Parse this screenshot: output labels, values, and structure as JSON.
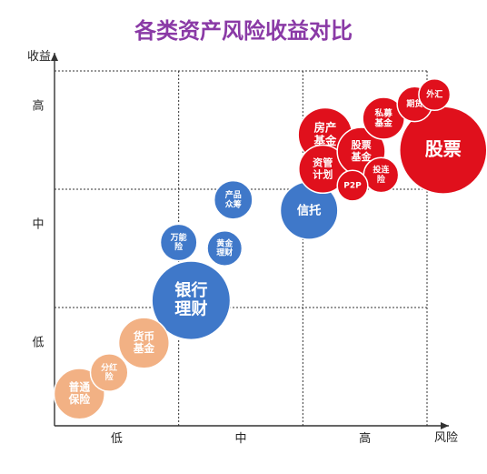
{
  "chart_data": {
    "type": "scatter",
    "title": "各类资产风险收益对比",
    "xlabel": "风险",
    "ylabel": "收益",
    "x_ticks": [
      "低",
      "中",
      "高"
    ],
    "y_ticks": [
      "低",
      "中",
      "高"
    ],
    "xlim": [
      0,
      3
    ],
    "ylim": [
      0,
      3
    ],
    "grid": true,
    "colors": {
      "red": "#e0101c",
      "blue": "#3f78c9",
      "orange": "#f2b184",
      "title": "#8a3aa6"
    },
    "points": [
      {
        "label": "普通\n保险",
        "x": 0.2,
        "y": 0.27,
        "size": 0.58,
        "color": "orange"
      },
      {
        "label": "分红\n险",
        "x": 0.44,
        "y": 0.45,
        "size": 0.43,
        "color": "orange"
      },
      {
        "label": "货币\n基金",
        "x": 0.72,
        "y": 0.7,
        "size": 0.58,
        "color": "orange"
      },
      {
        "label": "银行\n理财",
        "x": 1.1,
        "y": 1.06,
        "size": 0.9,
        "color": "blue"
      },
      {
        "label": "万能\n险",
        "x": 1.0,
        "y": 1.55,
        "size": 0.42,
        "color": "blue"
      },
      {
        "label": "黄金\n理财",
        "x": 1.37,
        "y": 1.5,
        "size": 0.4,
        "color": "blue"
      },
      {
        "label": "产品\n众筹",
        "x": 1.44,
        "y": 1.91,
        "size": 0.44,
        "color": "blue"
      },
      {
        "label": "信托",
        "x": 2.05,
        "y": 1.82,
        "size": 0.66,
        "color": "blue"
      },
      {
        "label": "房产\n基金",
        "x": 2.18,
        "y": 2.46,
        "size": 0.62,
        "color": "red"
      },
      {
        "label": "资管\n计划",
        "x": 2.16,
        "y": 2.17,
        "size": 0.55,
        "color": "red"
      },
      {
        "label": "P2P",
        "x": 2.4,
        "y": 2.03,
        "size": 0.35,
        "color": "red"
      },
      {
        "label": "股票\n基金",
        "x": 2.47,
        "y": 2.32,
        "size": 0.55,
        "color": "red"
      },
      {
        "label": "投连\n险",
        "x": 2.63,
        "y": 2.12,
        "size": 0.4,
        "color": "red"
      },
      {
        "label": "私募\n基金",
        "x": 2.65,
        "y": 2.6,
        "size": 0.48,
        "color": "red"
      },
      {
        "label": "期货",
        "x": 2.9,
        "y": 2.72,
        "size": 0.4,
        "color": "red"
      },
      {
        "label": "外汇",
        "x": 3.06,
        "y": 2.8,
        "size": 0.36,
        "color": "red"
      },
      {
        "label": "股票",
        "x": 3.13,
        "y": 2.33,
        "size": 1.0,
        "color": "red"
      }
    ]
  }
}
